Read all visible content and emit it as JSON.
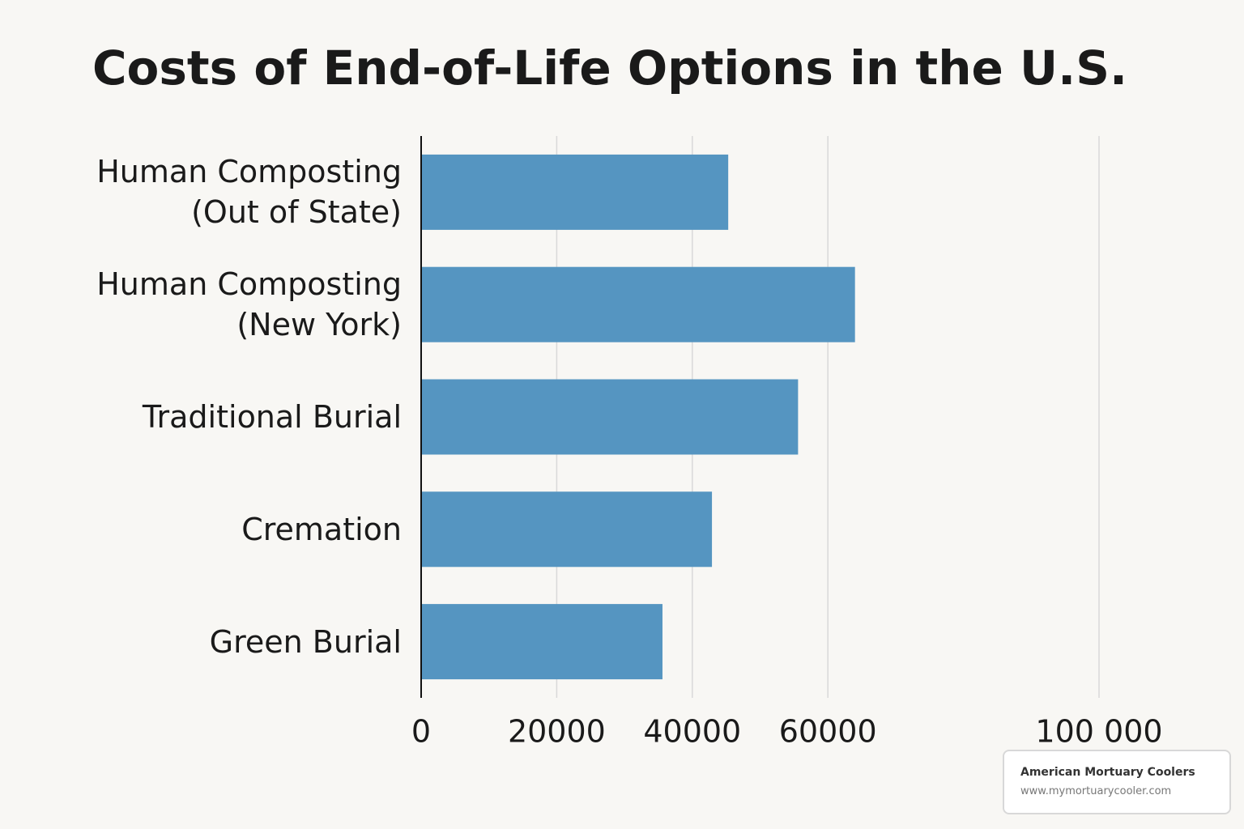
{
  "chart_data": {
    "type": "hbar",
    "title": "Costs of End-of-Life Options in the U.S.",
    "categories": [
      "Human Composting (Out of State)",
      "Human Composting (New York)",
      "Traditional Burial",
      "Cremation",
      "Green Burial"
    ],
    "values": [
      45300,
      64000,
      55600,
      42900,
      35600
    ],
    "color": "#5595c1",
    "xlim": [
      0,
      100000
    ],
    "xticks": [
      0,
      20000,
      40000,
      60000,
      {
        "value": 100000,
        "label": "100 000"
      }
    ],
    "grid": true
  },
  "watermark": {
    "name": "American Mortuary Coolers",
    "url": "www.mymortuarycooler.com"
  }
}
